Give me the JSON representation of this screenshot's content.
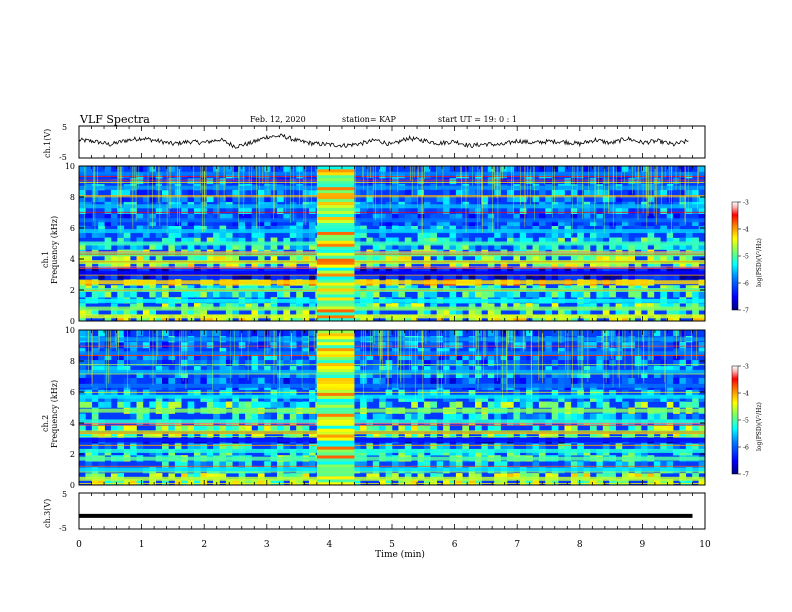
{
  "header": {
    "title": "VLF Spectra",
    "date": "Feb. 12, 2020",
    "station": "station= KAP",
    "start": "start  UT =   19: 0  : 1"
  },
  "colors": {
    "frame": "#000000",
    "background": "#ffffff",
    "colormap": [
      "#00008f",
      "#0000ff",
      "#0080ff",
      "#00ffff",
      "#80ff80",
      "#ffff00",
      "#ff8000",
      "#ff0000",
      "#800000",
      "#ffffff"
    ]
  },
  "chart_data": [
    {
      "type": "line",
      "panel": "ch1-waveform",
      "ylabel": "ch.1(V)",
      "ylim": [
        -5,
        5
      ],
      "y_ticks": [
        "5",
        "-5"
      ],
      "x": [
        0,
        0.25,
        0.5,
        0.75,
        1,
        1.25,
        1.5,
        1.75,
        2,
        2.25,
        2.5,
        2.75,
        3,
        3.25,
        3.5,
        3.75,
        4,
        4.25,
        4.5,
        4.75,
        5,
        5.25,
        5.5,
        5.75,
        6,
        6.25,
        6.5,
        6.75,
        7,
        7.25,
        7.5,
        7.75,
        8,
        8.25,
        8.5,
        8.75,
        9,
        9.25,
        9.5,
        9.75
      ],
      "values": [
        0.6,
        0.2,
        -0.8,
        0.5,
        1.2,
        0.4,
        -0.6,
        0.1,
        -0.2,
        0.8,
        -1.4,
        -0.3,
        1.6,
        1.9,
        0.3,
        -0.5,
        -0.8,
        -1.1,
        -0.5,
        0.6,
        -0.9,
        1.2,
        0.5,
        -0.4,
        0.2,
        -1.2,
        -0.6,
        -0.9,
        0.4,
        -0.3,
        0.2,
        0.1,
        -0.6,
        0.7,
        -0.4,
        1.1,
        -0.2,
        0.3,
        -0.8,
        0.4
      ]
    },
    {
      "type": "heatmap",
      "panel": "ch1-spectrogram",
      "ylabel": "ch.1",
      "ylabel2": "Frequency (kHz)",
      "ylim": [
        0,
        10
      ],
      "y_ticks": [
        "0",
        "2",
        "4",
        "6",
        "8",
        "10"
      ],
      "colorbar": {
        "ticks": [
          "-3",
          "-4",
          "-5",
          "-6",
          "-7"
        ],
        "label": "log(PSD)(V²/Hz)",
        "range": [
          -7,
          -3
        ]
      },
      "bands": [
        {
          "f": 9.5,
          "level": -5.8
        },
        {
          "f": 8.6,
          "level": -5.7
        },
        {
          "f": 7.4,
          "level": -5.6
        },
        {
          "f": 6.5,
          "level": -5.9
        },
        {
          "f": 5.8,
          "level": -5.5
        },
        {
          "f": 5.0,
          "level": -5.1
        },
        {
          "f": 4.3,
          "level": -4.9
        },
        {
          "f": 3.8,
          "level": -4.6
        },
        {
          "f": 3.1,
          "level": -6.5
        },
        {
          "f": 2.5,
          "level": -4.2
        },
        {
          "f": 2.0,
          "level": -5.0
        },
        {
          "f": 1.3,
          "level": -5.3
        },
        {
          "f": 0.8,
          "level": -4.8
        },
        {
          "f": 0.3,
          "level": -4.5
        }
      ],
      "burst": {
        "t_start": 3.8,
        "t_end": 4.4
      }
    },
    {
      "type": "heatmap",
      "panel": "ch2-spectrogram",
      "ylabel": "ch.2",
      "ylabel2": "Frequency (kHz)",
      "ylim": [
        0,
        10
      ],
      "y_ticks": [
        "0",
        "2",
        "4",
        "6",
        "8",
        "10"
      ],
      "colorbar": {
        "ticks": [
          "-3",
          "-4",
          "-5",
          "-6",
          "-7"
        ],
        "label": "log(PSD)(V²/Hz)",
        "range": [
          -7,
          -3
        ]
      },
      "bands": [
        {
          "f": 9.4,
          "level": -5.7
        },
        {
          "f": 8.5,
          "level": -5.8
        },
        {
          "f": 7.3,
          "level": -5.6
        },
        {
          "f": 6.4,
          "level": -5.9
        },
        {
          "f": 5.7,
          "level": -5.4
        },
        {
          "f": 4.8,
          "level": -4.8
        },
        {
          "f": 4.1,
          "level": -5.2
        },
        {
          "f": 3.4,
          "level": -4.7
        },
        {
          "f": 2.9,
          "level": -6.4
        },
        {
          "f": 2.2,
          "level": -5.2
        },
        {
          "f": 1.7,
          "level": -5.0
        },
        {
          "f": 1.0,
          "level": -5.4
        },
        {
          "f": 0.4,
          "level": -4.6
        }
      ],
      "burst": {
        "t_start": 3.8,
        "t_end": 4.4
      }
    },
    {
      "type": "line",
      "panel": "ch3-waveform",
      "ylabel": "ch.3(V)",
      "ylim": [
        -5,
        5
      ],
      "y_ticks": [
        "5",
        "-5"
      ],
      "x": [
        0,
        9.8
      ],
      "values": [
        -1.5,
        -1.5
      ]
    }
  ],
  "xaxis": {
    "label": "Time (min)",
    "ticks": [
      "0",
      "1",
      "2",
      "3",
      "4",
      "5",
      "6",
      "7",
      "8",
      "9",
      "10"
    ],
    "range": [
      0,
      10
    ]
  }
}
